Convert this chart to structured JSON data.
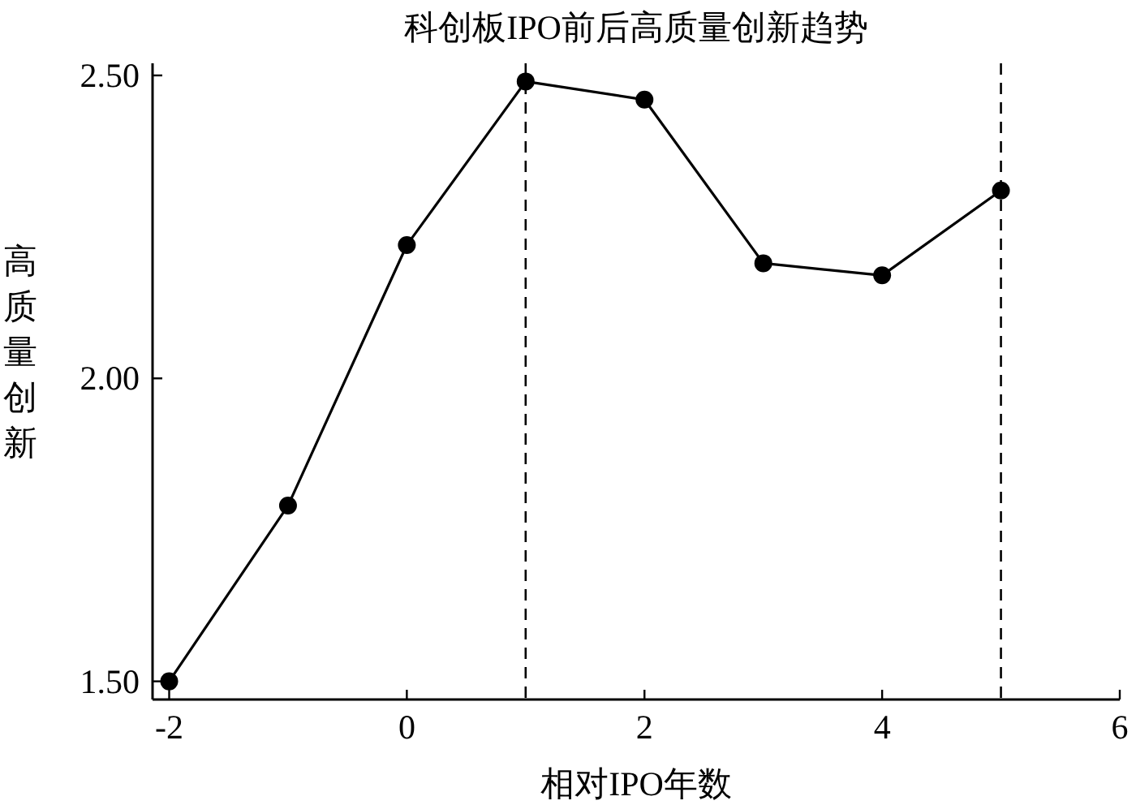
{
  "chart_data": {
    "type": "line",
    "title": "科创板IPO前后高质量创新趋势",
    "xlabel": "相对IPO年数",
    "ylabel": "高质量创新",
    "x": [
      -2,
      -1,
      0,
      1,
      2,
      3,
      4,
      5
    ],
    "series": [
      {
        "color": "#000000",
        "values": [
          1.5,
          1.79,
          2.22,
          2.49,
          2.46,
          2.19,
          2.17,
          2.31
        ]
      }
    ],
    "xlim": [
      -2.14,
      6
    ],
    "xticks": [
      -2,
      0,
      2,
      4,
      6
    ],
    "ylim": [
      1.47,
      2.52
    ],
    "yticks": [
      {
        "value": 1.5,
        "label": "1.50"
      },
      {
        "value": 2,
        "label": "2.00"
      },
      {
        "value": 2.5,
        "label": "2.50"
      }
    ],
    "ref_lines": [
      {
        "axis": "x",
        "value": 1,
        "line_style": "dashed",
        "color": "#000000"
      },
      {
        "axis": "x",
        "value": 5,
        "line_style": "dashed",
        "color": "#000000"
      }
    ],
    "marker": "circle",
    "line_style": "solid",
    "grid": false
  }
}
